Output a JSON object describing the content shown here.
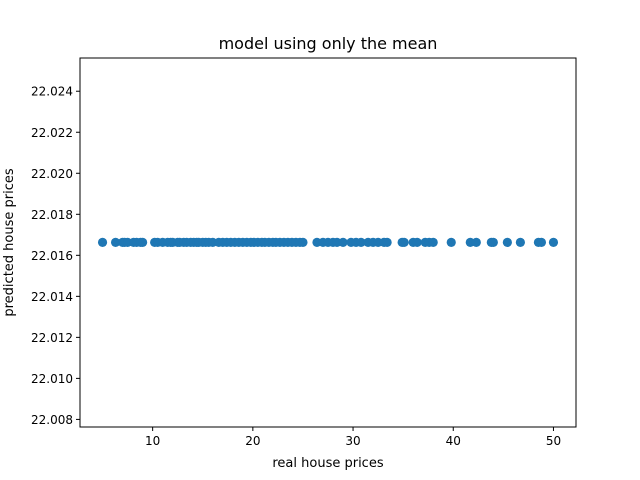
{
  "chart_data": {
    "type": "scatter",
    "title": "model using only the mean",
    "xlabel": "real house prices",
    "ylabel": "predicted house prices",
    "xlim": [
      2.75,
      52.25
    ],
    "ylim": [
      22.00763,
      22.02562
    ],
    "xticks": [
      10,
      20,
      30,
      40,
      50
    ],
    "yticks": [
      22.008,
      22.01,
      22.012,
      22.014,
      22.016,
      22.018,
      22.02,
      22.022,
      22.024
    ],
    "ytick_labels": [
      "22.008",
      "22.010",
      "22.012",
      "22.014",
      "22.016",
      "22.018",
      "22.020",
      "22.022",
      "22.024"
    ],
    "grid": false,
    "marker_color": "#1f77b4",
    "series": [
      {
        "y_constant": 22.01663,
        "x": [
          5.0,
          6.3,
          7.0,
          7.2,
          7.5,
          8.1,
          8.4,
          8.8,
          9.0,
          10.2,
          10.5,
          11.0,
          11.5,
          11.8,
          12.0,
          12.5,
          12.7,
          13.1,
          13.4,
          13.8,
          14.1,
          14.4,
          14.6,
          15.0,
          15.3,
          15.6,
          16.0,
          16.6,
          17.0,
          17.4,
          17.8,
          18.2,
          18.6,
          19.0,
          19.4,
          19.8,
          20.1,
          20.5,
          20.9,
          21.2,
          21.6,
          22.0,
          22.3,
          22.7,
          23.1,
          23.5,
          23.9,
          24.3,
          24.7,
          25.0,
          26.4,
          27.0,
          27.5,
          28.0,
          28.4,
          29.0,
          29.8,
          30.3,
          30.8,
          31.5,
          32.0,
          32.5,
          33.1,
          33.4,
          34.9,
          35.1,
          36.0,
          36.4,
          37.2,
          37.6,
          38.0,
          39.8,
          41.7,
          42.3,
          43.8,
          44.0,
          45.4,
          46.7,
          48.5,
          48.8,
          50.0
        ]
      }
    ]
  }
}
